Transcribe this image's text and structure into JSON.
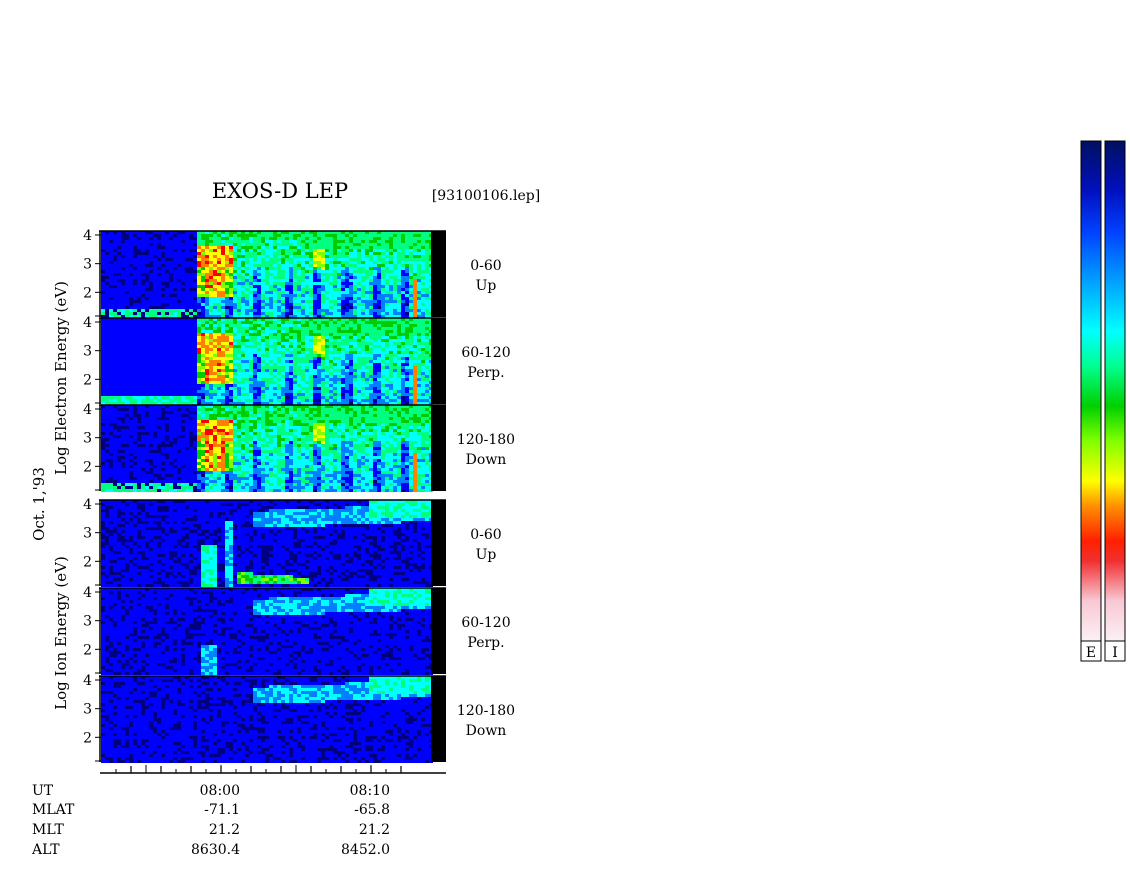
{
  "header": {
    "title": "EXOS-D LEP",
    "file_id": "[93100106.lep]",
    "date_label": "Oct. 1,'93"
  },
  "chart_data": {
    "type": "heatmap",
    "panel_groups": [
      {
        "species": "electron",
        "ylabel": "Log Electron Energy (eV)",
        "panels": [
          {
            "pitch_range": "0-60",
            "direction": "Up"
          },
          {
            "pitch_range": "60-120",
            "direction": "Perp."
          },
          {
            "pitch_range": "120-180",
            "direction": "Down"
          }
        ]
      },
      {
        "species": "ion",
        "ylabel": "Log Ion Energy (eV)",
        "panels": [
          {
            "pitch_range": "0-60",
            "direction": "Up"
          },
          {
            "pitch_range": "60-120",
            "direction": "Perp."
          },
          {
            "pitch_range": "120-180",
            "direction": "Down"
          }
        ]
      }
    ],
    "y_range_log_eV": [
      1,
      4
    ],
    "y_ticks": [
      "4",
      "3",
      "2"
    ],
    "x_axis": {
      "row_labels": [
        "UT",
        "MLAT",
        "MLT",
        "ALT"
      ],
      "labeled_times": [
        "08:00",
        "08:10"
      ],
      "columns": [
        {
          "UT": "08:00",
          "MLAT": "-71.1",
          "MLT": "21.2",
          "ALT": "8630.4"
        },
        {
          "UT": "08:10",
          "MLAT": "-65.8",
          "MLT": "21.2",
          "ALT": "8452.0"
        }
      ]
    },
    "colorbars": [
      {
        "label": "E"
      },
      {
        "label": "I"
      }
    ],
    "colormap": [
      "#f8e8ee",
      "#f8b8c8",
      "#ff0000",
      "#ff8000",
      "#ffff00",
      "#80ff00",
      "#00cc00",
      "#00ff80",
      "#00ffff",
      "#0080ff",
      "#0000ff",
      "#000080"
    ]
  }
}
